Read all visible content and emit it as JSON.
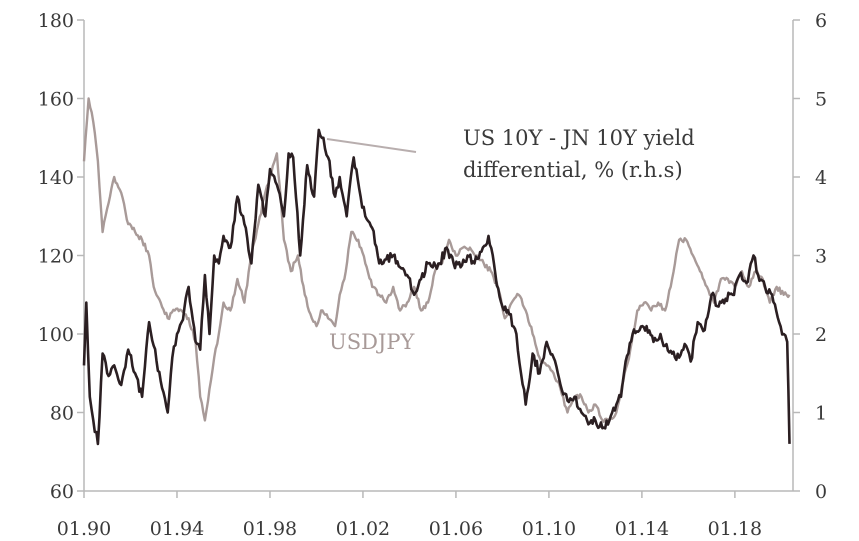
{
  "chart_data": {
    "type": "line",
    "x_ticks": [
      "01.90",
      "01.94",
      "01.98",
      "01.02",
      "01.06",
      "01.10",
      "01.14",
      "01.18"
    ],
    "x_range": [
      1990.0,
      2020.5
    ],
    "y_left_ticks": [
      "60",
      "80",
      "100",
      "120",
      "140",
      "160",
      "180"
    ],
    "y_left_range": [
      60,
      180
    ],
    "y_right_ticks": [
      "0",
      "1",
      "2",
      "3",
      "4",
      "5",
      "6"
    ],
    "y_right_range": [
      0,
      6
    ],
    "grid": false,
    "colors": {
      "dark": "#2b1f22",
      "light": "#a89a98",
      "axis": "#b8b8b8",
      "leader": "#b8aeae",
      "text": "#3a3a3a"
    },
    "annotations": {
      "diff_line1": "US 10Y - JN 10Y yield",
      "diff_line2": "differential, % (r.h.s)",
      "usdjpy": "USDJPY"
    },
    "series": [
      {
        "axis": "left",
        "color": "#2b1f22",
        "x": [
          1990.0,
          1990.1,
          1990.25,
          1990.4,
          1990.6,
          1990.8,
          1991.0,
          1991.3,
          1991.6,
          1991.9,
          1992.2,
          1992.5,
          1992.8,
          1993.0,
          1993.3,
          1993.6,
          1993.8,
          1994.0,
          1994.2,
          1994.5,
          1994.8,
          1995.0,
          1995.2,
          1995.4,
          1995.6,
          1995.8,
          1996.0,
          1996.3,
          1996.6,
          1996.9,
          1997.2,
          1997.5,
          1997.8,
          1998.0,
          1998.3,
          1998.6,
          1998.8,
          1999.0,
          1999.3,
          1999.6,
          1999.9,
          2000.1,
          2000.3,
          2000.5,
          2000.8,
          2001.0,
          2001.3,
          2001.6,
          2001.9,
          2002.1,
          2002.4,
          2002.7,
          2003.0,
          2003.3,
          2003.6,
          2003.9,
          2004.2,
          2004.5,
          2004.8,
          2005.0,
          2005.3,
          2005.6,
          2005.9,
          2006.2,
          2006.5,
          2006.8,
          2007.1,
          2007.4,
          2007.7,
          2008.0,
          2008.3,
          2008.6,
          2008.8,
          2009.0,
          2009.3,
          2009.6,
          2009.9,
          2010.2,
          2010.5,
          2010.8,
          2011.1,
          2011.4,
          2011.7,
          2012.0,
          2012.3,
          2012.6,
          2012.9,
          2013.1,
          2013.3,
          2013.6,
          2013.9,
          2014.2,
          2014.5,
          2014.8,
          2015.0,
          2015.3,
          2015.6,
          2015.9,
          2016.1,
          2016.4,
          2016.7,
          2017.0,
          2017.3,
          2017.6,
          2017.9,
          2018.2,
          2018.5,
          2018.8,
          2019.0,
          2019.3,
          2019.6,
          2019.9,
          2020.1,
          2020.25,
          2020.35
        ],
        "values": [
          92,
          108,
          84,
          78,
          72,
          95,
          90,
          92,
          87,
          96,
          90,
          84,
          103,
          97,
          88,
          80,
          94,
          100,
          103,
          112,
          98,
          96,
          115,
          100,
          120,
          118,
          125,
          122,
          135,
          128,
          118,
          138,
          130,
          142,
          138,
          130,
          146,
          145,
          120,
          143,
          135,
          152,
          150,
          145,
          135,
          140,
          130,
          145,
          135,
          130,
          127,
          118,
          119,
          120,
          117,
          115,
          110,
          114,
          118,
          117,
          118,
          122,
          118,
          117,
          120,
          118,
          121,
          125,
          115,
          107,
          105,
          100,
          90,
          82,
          95,
          90,
          98,
          94,
          87,
          83,
          84,
          80,
          77,
          78,
          76,
          78,
          82,
          84,
          93,
          100,
          101,
          102,
          98,
          100,
          97,
          95,
          94,
          97,
          93,
          103,
          101,
          110,
          107,
          109,
          110,
          115,
          113,
          120,
          115,
          112,
          110,
          103,
          100,
          98,
          72
        ]
      },
      {
        "axis": "right",
        "color": "#a89a98",
        "x": [
          1990.0,
          1990.2,
          1990.4,
          1990.6,
          1990.8,
          1991.0,
          1991.3,
          1991.6,
          1991.9,
          1992.2,
          1992.5,
          1992.8,
          1993.0,
          1993.3,
          1993.6,
          1993.9,
          1994.2,
          1994.5,
          1994.8,
          1995.0,
          1995.2,
          1995.4,
          1995.6,
          1995.8,
          1996.0,
          1996.3,
          1996.6,
          1996.9,
          1997.2,
          1997.5,
          1997.8,
          1998.0,
          1998.3,
          1998.6,
          1998.9,
          1999.2,
          1999.5,
          1999.8,
          2000.0,
          2000.2,
          2000.5,
          2000.8,
          2001.0,
          2001.2,
          2001.5,
          2001.8,
          2002.1,
          2002.4,
          2002.7,
          2003.0,
          2003.3,
          2003.6,
          2003.9,
          2004.2,
          2004.5,
          2004.8,
          2005.1,
          2005.4,
          2005.7,
          2006.0,
          2006.3,
          2006.6,
          2006.9,
          2007.2,
          2007.5,
          2007.8,
          2008.1,
          2008.4,
          2008.7,
          2009.0,
          2009.3,
          2009.6,
          2009.9,
          2010.2,
          2010.5,
          2010.8,
          2011.1,
          2011.4,
          2011.7,
          2012.0,
          2012.3,
          2012.6,
          2012.9,
          2013.2,
          2013.5,
          2013.8,
          2014.1,
          2014.4,
          2014.7,
          2015.0,
          2015.3,
          2015.6,
          2015.9,
          2016.2,
          2016.5,
          2016.8,
          2017.1,
          2017.4,
          2017.7,
          2018.0,
          2018.3,
          2018.6,
          2018.9,
          2019.2,
          2019.5,
          2019.8,
          2020.1,
          2020.35
        ],
        "values": [
          4.2,
          5.0,
          4.7,
          4.2,
          3.3,
          3.6,
          4.0,
          3.8,
          3.4,
          3.3,
          3.2,
          3.0,
          2.6,
          2.4,
          2.2,
          2.3,
          2.3,
          2.2,
          1.9,
          1.2,
          0.9,
          1.3,
          1.7,
          2.0,
          2.4,
          2.3,
          2.7,
          2.4,
          3.0,
          3.4,
          3.8,
          4.0,
          4.3,
          3.2,
          2.8,
          3.0,
          2.5,
          2.2,
          2.1,
          2.3,
          2.2,
          2.1,
          2.5,
          2.7,
          3.3,
          3.2,
          2.9,
          2.6,
          2.5,
          2.4,
          2.6,
          2.3,
          2.4,
          2.6,
          2.3,
          2.4,
          2.8,
          2.9,
          3.2,
          3.0,
          3.1,
          3.1,
          3.0,
          2.9,
          2.8,
          2.6,
          2.2,
          2.4,
          2.5,
          2.3,
          2.0,
          1.7,
          1.6,
          1.5,
          1.3,
          1.0,
          1.2,
          1.2,
          1.0,
          1.1,
          0.9,
          0.9,
          1.0,
          1.4,
          1.8,
          2.3,
          2.4,
          2.3,
          2.4,
          2.3,
          2.7,
          3.2,
          3.2,
          3.0,
          2.8,
          2.6,
          2.4,
          2.7,
          2.7,
          2.6,
          2.8,
          2.6,
          2.8,
          2.7,
          2.4,
          2.6,
          2.5,
          2.5
        ]
      }
    ]
  }
}
